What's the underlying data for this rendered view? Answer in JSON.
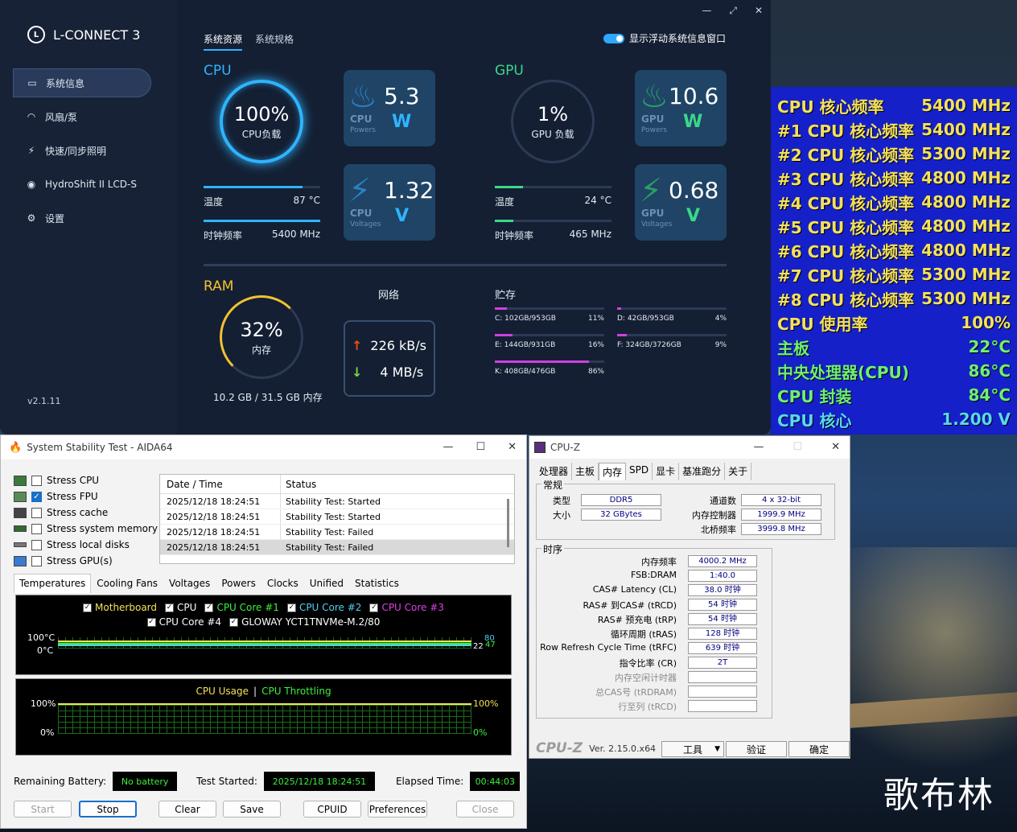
{
  "lconnect": {
    "app_name": "L-CONNECT 3",
    "logo_glyph": "L",
    "nav": [
      {
        "label": "系统信息",
        "icon": "monitor-icon"
      },
      {
        "label": "风扇/泵",
        "icon": "fan-icon"
      },
      {
        "label": "快速/同步照明",
        "icon": "lightning-icon"
      },
      {
        "label": "HydroShift II LCD-S",
        "icon": "disc-icon"
      },
      {
        "label": "设置",
        "icon": "gear-icon"
      }
    ],
    "version": "v2.1.11",
    "tabs": [
      "系统资源",
      "系统规格"
    ],
    "toggle_label": "显示浮动系统信息窗口",
    "toggle_on": true,
    "cpu": {
      "title": "CPU",
      "load_value": "100%",
      "load_label": "CPU负载",
      "power": {
        "value": "5.3",
        "unit": "W",
        "sub1": "CPU",
        "sub2": "Powers"
      },
      "voltage": {
        "value": "1.32",
        "unit": "V",
        "sub1": "CPU",
        "sub2": "Voltages"
      },
      "temp_label": "温度",
      "temp_value": "87 °C",
      "clock_label": "时钟频率",
      "clock_value": "5400 MHz"
    },
    "gpu": {
      "title": "GPU",
      "load_value": "1%",
      "load_label": "GPU 负载",
      "power": {
        "value": "10.6",
        "unit": "W",
        "sub1": "GPU",
        "sub2": "Powers"
      },
      "voltage": {
        "value": "0.68",
        "unit": "V",
        "sub1": "GPU",
        "sub2": "Voltages"
      },
      "temp_label": "温度",
      "temp_value": "24 °C",
      "clock_label": "时钟频率",
      "clock_value": "465 MHz"
    },
    "ram": {
      "title": "RAM",
      "value": "32%",
      "label": "内存",
      "detail": "10.2 GB / 31.5 GB 内存",
      "percent": 32
    },
    "network": {
      "title": "网络",
      "up": "226 kB/s",
      "down": "4 MB/s"
    },
    "storage": {
      "title": "贮存",
      "drives": [
        {
          "name": "C: 102GB/953GB",
          "pct": "11%",
          "fill": 11
        },
        {
          "name": "D: 42GB/953GB",
          "pct": "4%",
          "fill": 4
        },
        {
          "name": "E: 144GB/931GB",
          "pct": "16%",
          "fill": 16
        },
        {
          "name": "F: 324GB/3726GB",
          "pct": "9%",
          "fill": 9
        },
        {
          "name": "K: 408GB/476GB",
          "pct": "86%",
          "fill": 86
        }
      ]
    },
    "colors": {
      "cpu": "#2fb4ff",
      "gpu": "#3ad88a",
      "ram": "#f2c230",
      "storage": "#d040e0"
    }
  },
  "osd": {
    "rows": [
      {
        "k": "CPU 核心频率",
        "v": "5400 MHz",
        "color": "#f4e15a"
      },
      {
        "k": "#1 CPU 核心频率",
        "v": "5400 MHz",
        "color": "#f4e15a"
      },
      {
        "k": "#2 CPU 核心频率",
        "v": "5300 MHz",
        "color": "#f4e15a"
      },
      {
        "k": "#3 CPU 核心频率",
        "v": "4800 MHz",
        "color": "#f4e15a"
      },
      {
        "k": "#4 CPU 核心频率",
        "v": "4800 MHz",
        "color": "#f4e15a"
      },
      {
        "k": "#5 CPU 核心频率",
        "v": "4800 MHz",
        "color": "#f4e15a"
      },
      {
        "k": "#6 CPU 核心频率",
        "v": "4800 MHz",
        "color": "#f4e15a"
      },
      {
        "k": "#7 CPU 核心频率",
        "v": "5300 MHz",
        "color": "#f4e15a"
      },
      {
        "k": "#8 CPU 核心频率",
        "v": "5300 MHz",
        "color": "#f4e15a"
      },
      {
        "k": "CPU 使用率",
        "v": "100%",
        "color": "#f4e15a"
      },
      {
        "k": "主板",
        "v": "22°C",
        "color": "#6ff06f"
      },
      {
        "k": "中央处理器(CPU)",
        "v": "86°C",
        "color": "#6ff06f"
      },
      {
        "k": "CPU 封装",
        "v": "84°C",
        "color": "#6ff06f"
      },
      {
        "k": "CPU 核心",
        "v": "1.200 V",
        "color": "#58d8f0"
      }
    ]
  },
  "aida": {
    "title": "System Stability Test - AIDA64",
    "stress": [
      {
        "label": "Stress CPU",
        "checked": false
      },
      {
        "label": "Stress FPU",
        "checked": true
      },
      {
        "label": "Stress cache",
        "checked": false
      },
      {
        "label": "Stress system memory",
        "checked": false
      },
      {
        "label": "Stress local disks",
        "checked": false
      },
      {
        "label": "Stress GPU(s)",
        "checked": false
      }
    ],
    "log_headers": [
      "Date / Time",
      "Status"
    ],
    "log": [
      {
        "time": "2025/12/18 18:24:51",
        "status": "Stability Test: Started"
      },
      {
        "time": "2025/12/18 18:24:51",
        "status": "Stability Test: Started"
      },
      {
        "time": "2025/12/18 18:24:51",
        "status": "Stability Test: Failed"
      },
      {
        "time": "2025/12/18 18:24:51",
        "status": "Stability Test: Failed"
      }
    ],
    "tabs": [
      "Temperatures",
      "Cooling Fans",
      "Voltages",
      "Powers",
      "Clocks",
      "Unified",
      "Statistics"
    ],
    "temp_legend_row1": [
      {
        "label": "Motherboard",
        "color": "#f4e15a"
      },
      {
        "label": "CPU",
        "color": "#ffffff"
      },
      {
        "label": "CPU Core #1",
        "color": "#3cf03c"
      },
      {
        "label": "CPU Core #2",
        "color": "#4fd0f0"
      },
      {
        "label": "CPU Core #3",
        "color": "#e040e0"
      }
    ],
    "temp_legend_row2": [
      {
        "label": "CPU Core #4",
        "color": "#ffffff"
      },
      {
        "label": "GLOWAY YCT1TNVMe-M.2/80",
        "color": "#ffffff"
      }
    ],
    "temp_axis_top": "100°C",
    "temp_axis_bottom": "0°C",
    "temp_right_high": "80",
    "temp_right_low": "22",
    "temp_right_low2": "47",
    "usage_title": "CPU Usage",
    "usage_sep": "|",
    "throttle_title": "CPU Throttling",
    "usage_axis_top": "100%",
    "usage_axis_bottom": "0%",
    "usage_right_top": "100%",
    "usage_right_bottom": "0%",
    "battery_label": "Remaining Battery:",
    "battery_value": "No battery",
    "started_label": "Test Started:",
    "started_value": "2025/12/18 18:24:51",
    "elapsed_label": "Elapsed Time:",
    "elapsed_value": "00:44:03",
    "buttons": {
      "start": "Start",
      "stop": "Stop",
      "clear": "Clear",
      "save": "Save",
      "cpuid": "CPUID",
      "prefs": "Preferences",
      "close": "Close"
    }
  },
  "cpuz": {
    "title": "CPU-Z",
    "tabs": [
      "处理器",
      "主板",
      "内存",
      "SPD",
      "显卡",
      "基准跑分",
      "关于"
    ],
    "general_title": "常规",
    "type_label": "类型",
    "type_value": "DDR5",
    "size_label": "大小",
    "size_value": "32 GBytes",
    "channels_label": "通道数",
    "channels_value": "4 x 32-bit",
    "mc_label": "内存控制器",
    "mc_value": "1999.9 MHz",
    "nb_label": "北桥频率",
    "nb_value": "3999.8 MHz",
    "timing_title": "时序",
    "timings": [
      {
        "k": "内存频率",
        "v": "4000.2 MHz",
        "dim": false
      },
      {
        "k": "FSB:DRAM",
        "v": "1:40.0",
        "dim": false
      },
      {
        "k": "CAS# Latency (CL)",
        "v": "38.0 时钟",
        "dim": false
      },
      {
        "k": "RAS# 到CAS# (tRCD)",
        "v": "54 时钟",
        "dim": false
      },
      {
        "k": "RAS# 预充电 (tRP)",
        "v": "54 时钟",
        "dim": false
      },
      {
        "k": "循环周期 (tRAS)",
        "v": "128 时钟",
        "dim": false
      },
      {
        "k": "Row Refresh Cycle Time (tRFC)",
        "v": "639 时钟",
        "dim": false
      },
      {
        "k": "指令比率 (CR)",
        "v": "2T",
        "dim": false
      },
      {
        "k": "内存空闲计时器",
        "v": "",
        "dim": true
      },
      {
        "k": "总CAS号 (tRDRAM)",
        "v": "",
        "dim": true
      },
      {
        "k": "行至列 (tRCD)",
        "v": "",
        "dim": true
      }
    ],
    "brand": "CPU-Z",
    "version": "Ver. 2.15.0.x64",
    "tools_btn": "工具",
    "validate_btn": "验证",
    "ok_btn": "确定"
  },
  "watermark": "歌布林"
}
